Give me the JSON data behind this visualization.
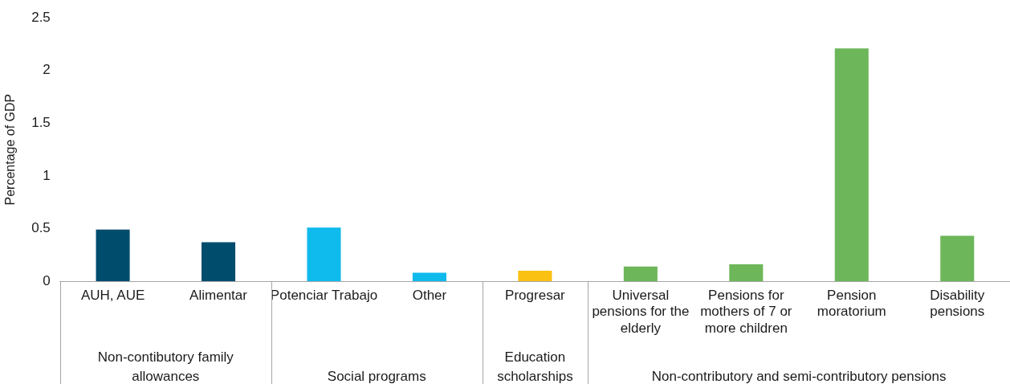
{
  "chart_data": {
    "type": "bar",
    "ylabel": "Percentage of GDP",
    "categories": [
      "AUH, AUE",
      "Alimentar",
      "Potenciar Trabajo",
      "Other",
      "Progresar",
      "Universal pensions for the elderly",
      "Pensions for mothers of 7 or more children",
      "Pension moratorium",
      "Disability pensions"
    ],
    "values": [
      0.49,
      0.37,
      0.51,
      0.08,
      0.1,
      0.14,
      0.16,
      2.21,
      0.43
    ],
    "colors": [
      "#004c6d",
      "#004c6d",
      "#0fbaec",
      "#0fbaec",
      "#fbc112",
      "#6db75a",
      "#6db75a",
      "#6db75a",
      "#6db75a"
    ],
    "ylim": [
      0,
      2.5
    ],
    "yticks": [
      0,
      0.5,
      1,
      1.5,
      2,
      2.5
    ],
    "grid": false,
    "legend": false,
    "annotations": [
      "Non-contibutory family allowances",
      "Social programs",
      "Education scholarships",
      "Non-contributory and semi-contributory pensions"
    ]
  }
}
